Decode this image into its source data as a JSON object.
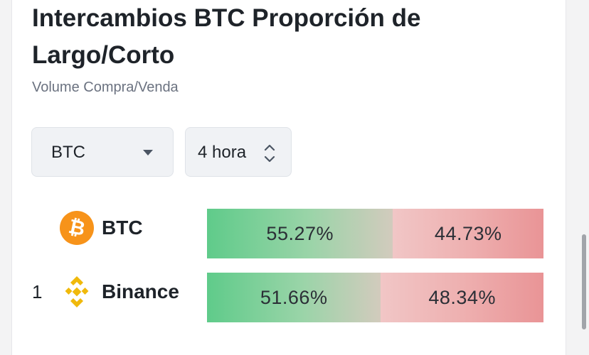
{
  "header": {
    "title": "Intercambios BTC Proporción de Largo/Corto",
    "subtitle": "Volume Compra/Venda"
  },
  "filters": {
    "coin": "BTC",
    "timeframe": "4 hora"
  },
  "rows": [
    {
      "rank": "",
      "name": "BTC",
      "icon": "bitcoin-icon",
      "long_pct": 55.27,
      "long_label": "55.27%",
      "short_label": "44.73%"
    },
    {
      "rank": "1",
      "name": "Binance",
      "icon": "binance-icon",
      "long_pct": 51.66,
      "long_label": "51.66%",
      "short_label": "48.34%"
    }
  ],
  "colors": {
    "long": "#5fcb8a",
    "short": "#e99496",
    "bitcoin": "#f7931a",
    "binance": "#f0b90b"
  }
}
